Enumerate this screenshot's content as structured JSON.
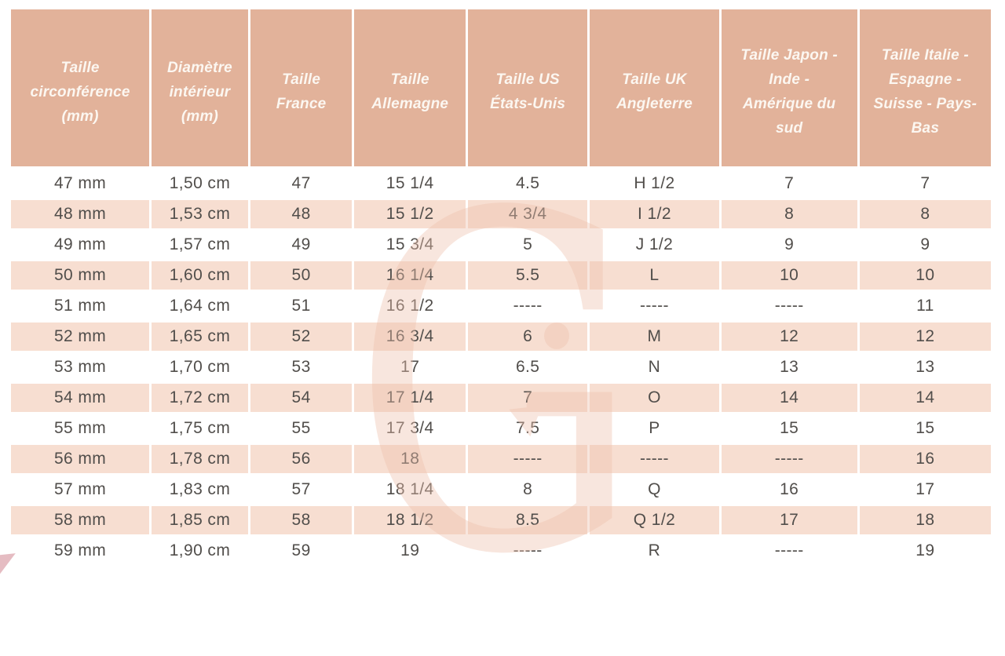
{
  "colors": {
    "header_bg": "#e2b29a",
    "row_alt_bg": "#f7ded1",
    "header_text": "#fcf7f1",
    "body_text": "#514e4b",
    "watermark": "#efc2ae"
  },
  "watermark": {
    "letter": "G",
    "description": "large semi-transparent G monogram with dot and arrow terminal"
  },
  "chart_data": {
    "type": "table",
    "columns": [
      "Taille\ncirconférence\n(mm)",
      "Diamètre\nintérieur\n(mm)",
      "Taille\nFrance",
      "Taille\nAllemagne",
      "Taille US\nÉtats-Unis",
      "Taille UK\nAngleterre",
      "Taille Japon -\nInde -\nAmérique du\nsud",
      "Taille Italie -\nEspagne -\nSuisse - Pays-\nBas"
    ],
    "rows": [
      [
        "47 mm",
        "1,50 cm",
        "47",
        "15 1/4",
        "4.5",
        "H 1/2",
        "7",
        "7"
      ],
      [
        "48 mm",
        "1,53 cm",
        "48",
        "15 1/2",
        "4 3/4",
        "I 1/2",
        "8",
        "8"
      ],
      [
        "49 mm",
        "1,57 cm",
        "49",
        "15 3/4",
        "5",
        "J 1/2",
        "9",
        "9"
      ],
      [
        "50 mm",
        "1,60 cm",
        "50",
        "16 1/4",
        "5.5",
        "L",
        "10",
        "10"
      ],
      [
        "51 mm",
        "1,64 cm",
        "51",
        "16 1/2",
        "-----",
        "-----",
        "-----",
        "11"
      ],
      [
        "52 mm",
        "1,65 cm",
        "52",
        "16 3/4",
        "6",
        "M",
        "12",
        "12"
      ],
      [
        "53 mm",
        "1,70 cm",
        "53",
        "17",
        "6.5",
        "N",
        "13",
        "13"
      ],
      [
        "54 mm",
        "1,72 cm",
        "54",
        "17 1/4",
        "7",
        "O",
        "14",
        "14"
      ],
      [
        "55 mm",
        "1,75 cm",
        "55",
        "17 3/4",
        "7.5",
        "P",
        "15",
        "15"
      ],
      [
        "56 mm",
        "1,78 cm",
        "56",
        "18",
        "-----",
        "-----",
        "-----",
        "16"
      ],
      [
        "57 mm",
        "1,83 cm",
        "57",
        "18 1/4",
        "8",
        "Q",
        "16",
        "17"
      ],
      [
        "58 mm",
        "1,85 cm",
        "58",
        "18 1/2",
        "8.5",
        "Q 1/2",
        "17",
        "18"
      ],
      [
        "59 mm",
        "1,90 cm",
        "59",
        "19",
        "-----",
        "R",
        "-----",
        "19"
      ]
    ],
    "layout": {
      "header_style": "peach background, white bold italic text",
      "row_striping": "odd rows white, even rows light peach",
      "alignment": "all cells centered"
    }
  }
}
